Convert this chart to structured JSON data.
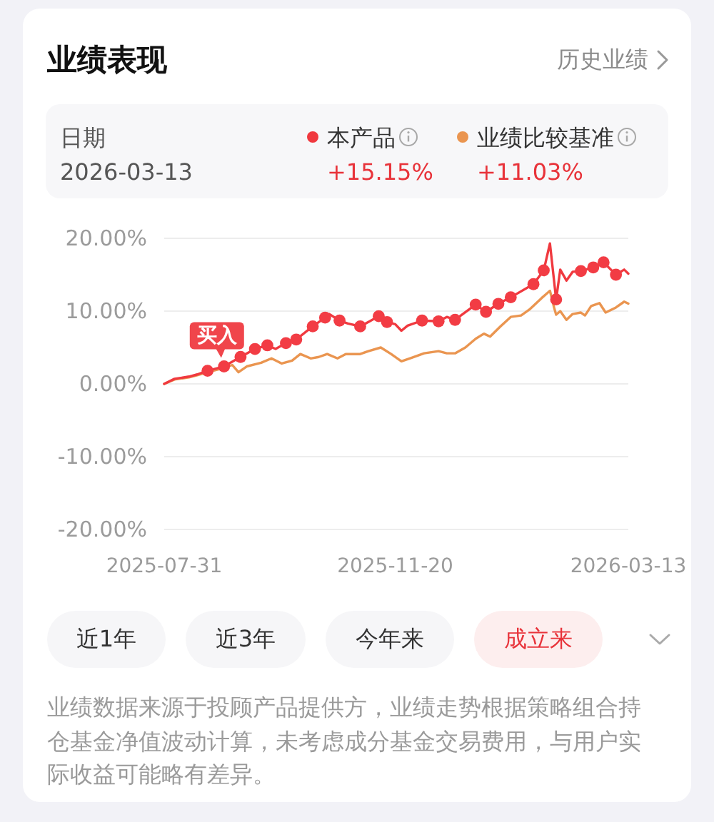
{
  "chart_data": {
    "type": "line",
    "title": "业绩表现",
    "xlim": [
      "2025-07-31",
      "2026-03-13"
    ],
    "xticks": [
      {
        "value": "2025-07-31",
        "label": "2025-07-31"
      },
      {
        "value": "2025-11-20",
        "label": "2025-11-20"
      },
      {
        "value": "2026-03-13",
        "label": "2026-03-13"
      }
    ],
    "ylim": [
      -20,
      20
    ],
    "yticks": [
      {
        "value": 20,
        "label": "20.00%"
      },
      {
        "value": 10,
        "label": "10.00%"
      },
      {
        "value": 0,
        "label": "0.00%"
      },
      {
        "value": -10,
        "label": "-10.00%"
      },
      {
        "value": -20,
        "label": "-20.00%"
      }
    ],
    "grid": "y",
    "legend": "top",
    "series": [
      {
        "name": "本产品",
        "color": "#f0393f",
        "x": [
          "2025-07-31",
          "2025-08-05",
          "2025-08-12",
          "2025-08-16",
          "2025-08-21",
          "2025-08-29",
          "2025-09-06",
          "2025-09-13",
          "2025-09-19",
          "2025-09-23",
          "2025-09-28",
          "2025-10-03",
          "2025-10-11",
          "2025-10-17",
          "2025-10-19",
          "2025-10-24",
          "2025-10-28",
          "2025-11-03",
          "2025-11-07",
          "2025-11-12",
          "2025-11-16",
          "2025-11-20",
          "2025-11-23",
          "2025-11-26",
          "2025-12-03",
          "2025-12-11",
          "2025-12-15",
          "2025-12-19",
          "2025-12-29",
          "2026-01-03",
          "2026-01-09",
          "2026-01-15",
          "2026-01-26",
          "2026-01-31",
          "2026-02-03",
          "2026-02-06",
          "2026-02-08",
          "2026-02-11",
          "2026-02-14",
          "2026-02-18",
          "2026-02-24",
          "2026-03-01",
          "2026-03-07",
          "2026-03-11",
          "2026-03-13"
        ],
        "values": [
          0,
          0.7,
          1.0,
          1.3,
          1.8,
          2.4,
          3.7,
          4.8,
          5.3,
          4.8,
          5.6,
          6.1,
          7.9,
          9.1,
          9.6,
          8.7,
          8.3,
          7.9,
          8.5,
          9.3,
          8.5,
          8.2,
          7.3,
          8.0,
          8.7,
          8.6,
          9.2,
          8.8,
          10.9,
          9.9,
          11.0,
          11.9,
          13.7,
          15.6,
          19.3,
          11.6,
          15.7,
          14.2,
          15.4,
          15.5,
          16.0,
          16.7,
          15.0,
          15.7,
          15.15
        ]
      },
      {
        "name": "业绩比较基准",
        "color": "#ea9550",
        "x": [
          "2025-07-31",
          "2025-08-05",
          "2025-08-12",
          "2025-08-16",
          "2025-08-21",
          "2025-08-29",
          "2025-09-02",
          "2025-09-05",
          "2025-09-09",
          "2025-09-16",
          "2025-09-21",
          "2025-09-26",
          "2025-10-01",
          "2025-10-05",
          "2025-10-10",
          "2025-10-14",
          "2025-10-18",
          "2025-10-23",
          "2025-10-27",
          "2025-11-03",
          "2025-11-07",
          "2025-11-13",
          "2025-11-18",
          "2025-11-23",
          "2025-11-28",
          "2025-12-04",
          "2025-12-11",
          "2025-12-15",
          "2025-12-19",
          "2025-12-24",
          "2025-12-29",
          "2026-01-02",
          "2026-01-05",
          "2026-01-10",
          "2026-01-15",
          "2026-01-20",
          "2026-01-24",
          "2026-01-30",
          "2026-02-03",
          "2026-02-05",
          "2026-02-06",
          "2026-02-08",
          "2026-02-11",
          "2026-02-14",
          "2026-02-18",
          "2026-02-20",
          "2026-02-23",
          "2026-02-27",
          "2026-03-02",
          "2026-03-07",
          "2026-03-11",
          "2026-03-13"
        ],
        "values": [
          0,
          0.6,
          0.9,
          1.2,
          1.6,
          2.2,
          2.6,
          1.6,
          2.4,
          2.9,
          3.5,
          2.8,
          3.2,
          4.1,
          3.5,
          3.7,
          4.1,
          3.5,
          4.1,
          4.1,
          4.5,
          5.0,
          4.1,
          3.1,
          3.6,
          4.2,
          4.5,
          4.2,
          4.2,
          5.0,
          6.2,
          6.9,
          6.5,
          7.9,
          9.2,
          9.4,
          10.2,
          11.8,
          12.8,
          10.5,
          9.5,
          10.0,
          8.8,
          9.6,
          9.8,
          9.4,
          10.7,
          11.1,
          9.8,
          10.5,
          11.3,
          11.03
        ]
      },
      {
        "type": "scatter",
        "marker": "circle",
        "color": "#f23c44",
        "x": [
          "2025-08-21",
          "2025-08-29",
          "2025-09-06",
          "2025-09-13",
          "2025-09-19",
          "2025-09-28",
          "2025-10-03",
          "2025-10-11",
          "2025-10-17",
          "2025-10-24",
          "2025-11-03",
          "2025-11-12",
          "2025-11-16",
          "2025-12-03",
          "2025-12-11",
          "2025-12-19",
          "2025-12-29",
          "2026-01-03",
          "2026-01-09",
          "2026-01-15",
          "2026-01-26",
          "2026-01-31",
          "2026-02-06",
          "2026-02-18",
          "2026-02-24",
          "2026-03-01",
          "2026-03-07"
        ],
        "values": [
          1.8,
          2.4,
          3.7,
          4.8,
          5.3,
          5.6,
          6.1,
          7.9,
          9.1,
          8.7,
          7.9,
          9.3,
          8.5,
          8.7,
          8.6,
          8.8,
          10.9,
          9.9,
          11.0,
          11.9,
          13.7,
          15.6,
          11.6,
          15.5,
          16.0,
          16.7,
          15.0
        ]
      }
    ],
    "annotations": [
      {
        "text": "买入",
        "x": "2025-08-29",
        "y": 2.4
      },
      "历史业绩",
      "日期",
      "2026-03-13",
      "+15.15%",
      "+11.03%",
      "近1年",
      "近3年",
      "今年来",
      "成立来",
      "业绩数据来源于投顾产品提供方，业绩走势根据策略组合持仓基金净值波动计算，未考虑成分基金交易费用，与用户实际收益可能略有差异。"
    ]
  }
}
